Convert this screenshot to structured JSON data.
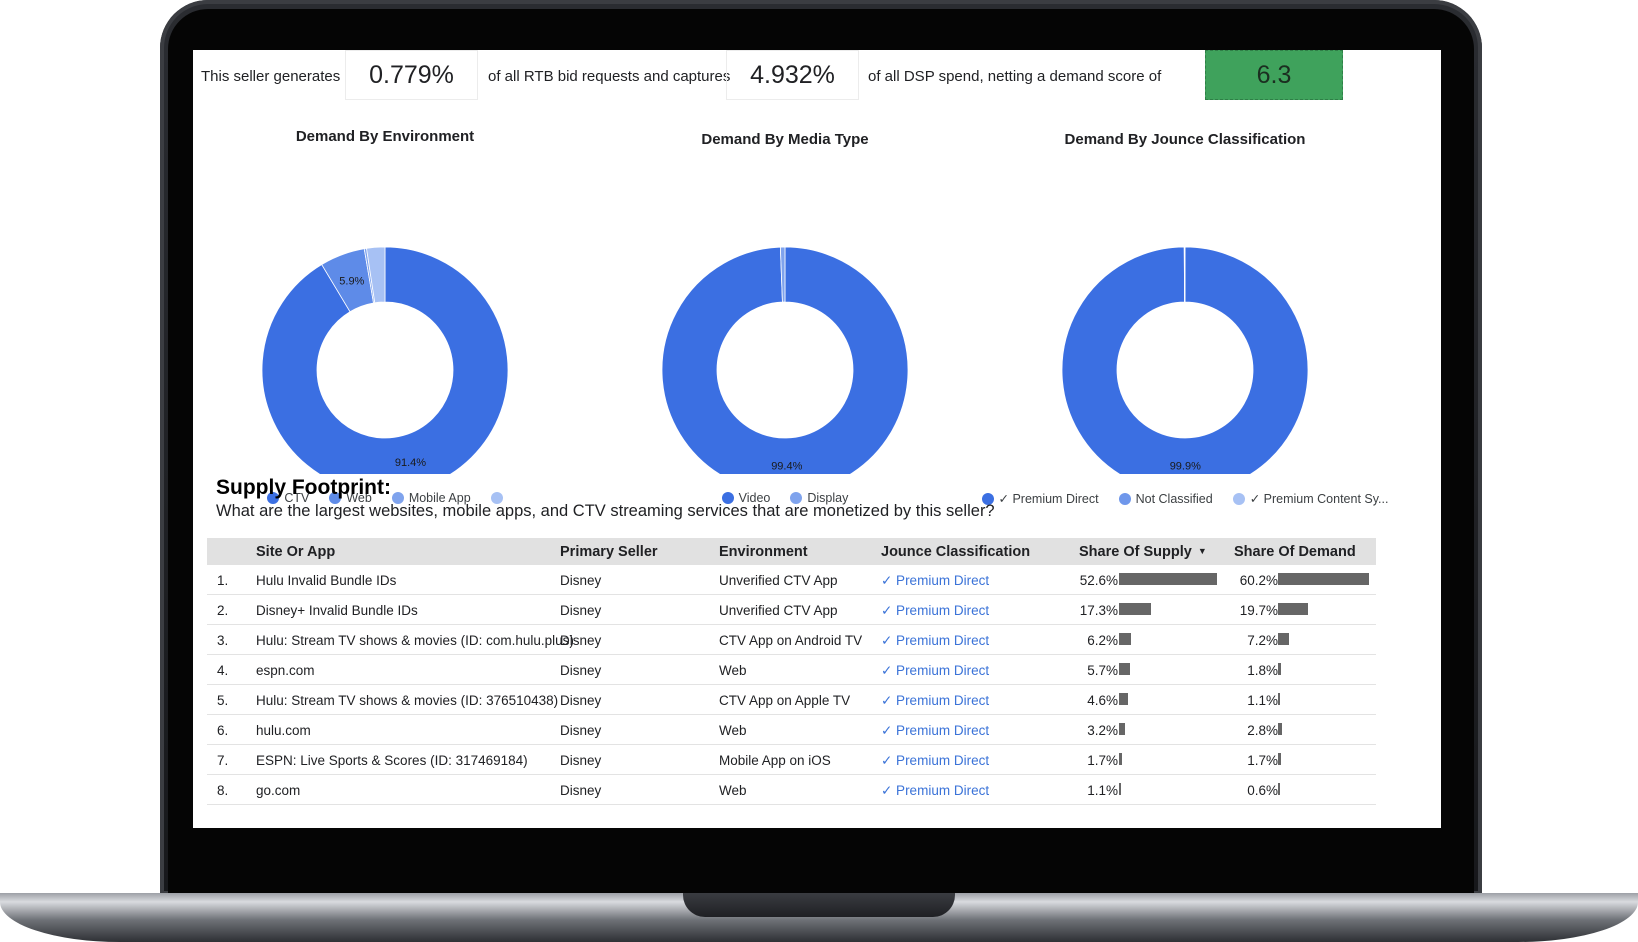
{
  "score_strip": {
    "text_1": "This seller generates",
    "rtb_share": "0.779%",
    "text_2": "of all RTB bid requests and captures",
    "dsp_share": "4.932%",
    "text_3": "of all DSP spend, netting a demand score of",
    "demand_score": "6.3",
    "score_color": "#3fa25c"
  },
  "chart_data": [
    {
      "type": "pie",
      "title": "Demand By Environment",
      "categories": [
        "CTV",
        "Web",
        "Mobile App",
        ""
      ],
      "values": [
        91.4,
        5.9,
        0.3,
        2.4
      ],
      "colors": [
        "#3b6fe2",
        "#5e8be8",
        "#7fa3ed",
        "#a7c1f4"
      ],
      "data_labels": [
        "91.4%",
        "5.9%",
        "",
        ""
      ],
      "donut": true,
      "legend_position": "bottom"
    },
    {
      "type": "pie",
      "title": "Demand By Media Type",
      "categories": [
        "Video",
        "Display"
      ],
      "values": [
        99.4,
        0.6
      ],
      "colors": [
        "#3b6fe2",
        "#7fa3ed"
      ],
      "data_labels": [
        "99.4%",
        ""
      ],
      "donut": true,
      "legend_position": "bottom"
    },
    {
      "type": "pie",
      "title": "Demand By Jounce Classification",
      "categories": [
        "✓ Premium Direct",
        "Not Classified",
        "✓ Premium Content Sy..."
      ],
      "values": [
        99.9,
        0.05,
        0.05
      ],
      "colors": [
        "#3b6fe2",
        "#6f97eb",
        "#a7c1f4"
      ],
      "data_labels": [
        "99.9%",
        "",
        ""
      ],
      "donut": true,
      "legend_position": "bottom"
    }
  ],
  "supply": {
    "title": "Supply Footprint:",
    "subtitle": "What are the largest websites, mobile apps, and CTV streaming services that are monetized by this seller?",
    "columns": {
      "site": "Site Or App",
      "seller": "Primary Seller",
      "environment": "Environment",
      "classification": "Jounce Classification",
      "share_supply": "Share Of Supply",
      "share_demand": "Share Of Demand"
    },
    "sort_icon": "sort-down-icon",
    "rows": [
      {
        "idx": "1.",
        "site": "Hulu Invalid Bundle IDs",
        "seller": "Disney",
        "environment": "Unverified CTV App",
        "classification": "✓ Premium Direct",
        "supply": "52.6%",
        "supply_num": 52.6,
        "demand": "60.2%",
        "demand_num": 60.2
      },
      {
        "idx": "2.",
        "site": "Disney+ Invalid Bundle IDs",
        "seller": "Disney",
        "environment": "Unverified CTV App",
        "classification": "✓ Premium Direct",
        "supply": "17.3%",
        "supply_num": 17.3,
        "demand": "19.7%",
        "demand_num": 19.7
      },
      {
        "idx": "3.",
        "site": "Hulu: Stream TV shows & movies (ID: com.hulu.plus)",
        "seller": "Disney",
        "environment": "CTV App on Android TV",
        "classification": "✓ Premium Direct",
        "supply": "6.2%",
        "supply_num": 6.2,
        "demand": "7.2%",
        "demand_num": 7.2
      },
      {
        "idx": "4.",
        "site": "espn.com",
        "seller": "Disney",
        "environment": "Web",
        "classification": "✓ Premium Direct",
        "supply": "5.7%",
        "supply_num": 5.7,
        "demand": "1.8%",
        "demand_num": 1.8
      },
      {
        "idx": "5.",
        "site": "Hulu: Stream TV shows & movies (ID: 376510438)",
        "seller": "Disney",
        "environment": "CTV App on Apple TV",
        "classification": "✓ Premium Direct",
        "supply": "4.6%",
        "supply_num": 4.6,
        "demand": "1.1%",
        "demand_num": 1.1
      },
      {
        "idx": "6.",
        "site": "hulu.com",
        "seller": "Disney",
        "environment": "Web",
        "classification": "✓ Premium Direct",
        "supply": "3.2%",
        "supply_num": 3.2,
        "demand": "2.8%",
        "demand_num": 2.8
      },
      {
        "idx": "7.",
        "site": "ESPN: Live Sports & Scores (ID: 317469184)",
        "seller": "Disney",
        "environment": "Mobile App on iOS",
        "classification": "✓ Premium Direct",
        "supply": "1.7%",
        "supply_num": 1.7,
        "demand": "1.7%",
        "demand_num": 1.7
      },
      {
        "idx": "8.",
        "site": "go.com",
        "seller": "Disney",
        "environment": "Web",
        "classification": "✓ Premium Direct",
        "supply": "1.1%",
        "supply_num": 1.1,
        "demand": "0.6%",
        "demand_num": 0.6
      }
    ],
    "bar_color": "#666666"
  }
}
